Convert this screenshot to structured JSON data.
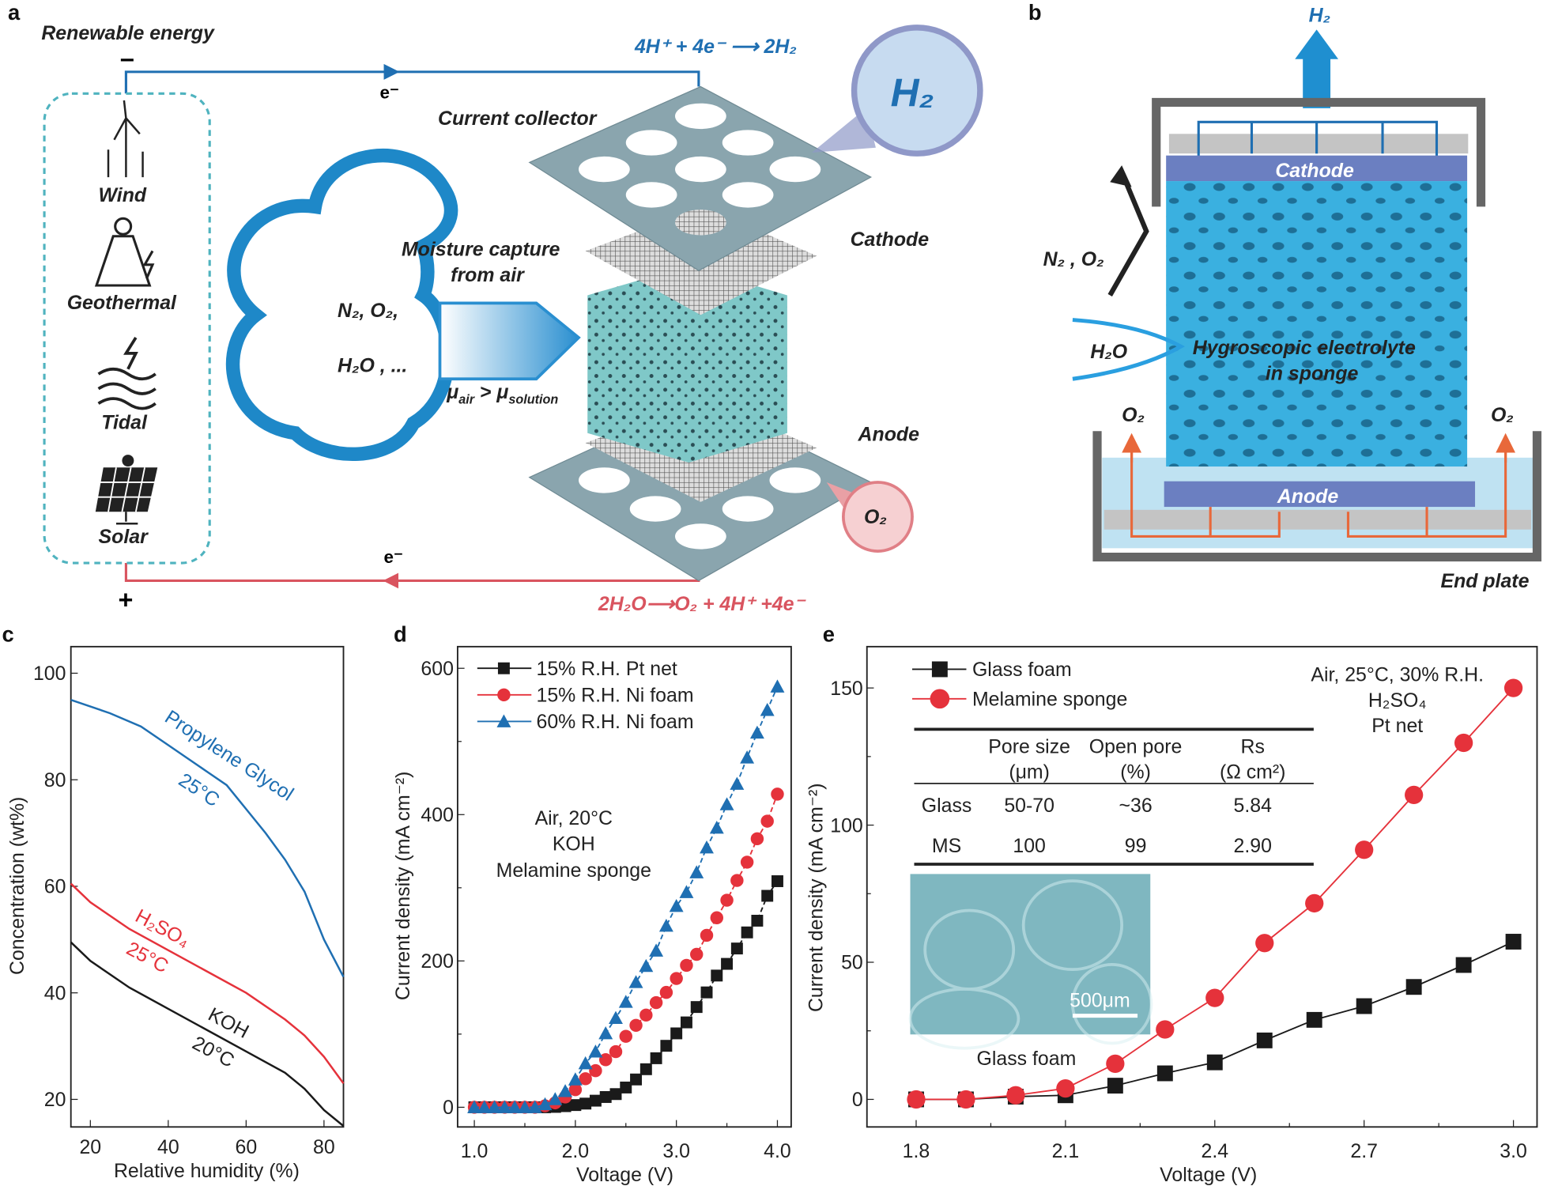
{
  "colors": {
    "blue": "#1f6fb2",
    "red": "#e5323b",
    "black": "#1a1a1a",
    "teal": "#4fb3bf",
    "plate": "#8aa5ae",
    "cathode": "#6b7fc1",
    "sponge": "#3ab0e0",
    "pinkred": "#d9545f"
  },
  "panel_a": {
    "label": "a",
    "renewable": "Renewable energy",
    "minus": "–",
    "plus": "+",
    "sources": [
      "Wind",
      "Geothermal",
      "Tidal",
      "Solar"
    ],
    "electron_top": "e⁻",
    "electron_bottom": "e⁻",
    "cathode_rxn": "4H⁺ + 4e⁻ ⟶ 2H₂",
    "anode_rxn": "2H₂O⟶O₂ + 4H⁺ +4e⁻",
    "cloud_line1": "N₂, O₂,",
    "cloud_line2": "H₂O , ...",
    "moisture_line1": "Moisture capture",
    "moisture_line2": "from air",
    "mu1": "μ",
    "mu_air": "air",
    "mu_gt": " > μ",
    "mu_solution": "solution",
    "current_collector": "Current collector",
    "cathode": "Cathode",
    "anode": "Anode",
    "h2_bubble": "H₂",
    "o2_bubble": "O₂"
  },
  "panel_b": {
    "label": "b",
    "h2": "H₂",
    "cathode": "Cathode",
    "n2o2": "N₂ , O₂",
    "h2o": "H₂O",
    "sponge_line1": "Hygroscopic electrolyte",
    "sponge_line2": "in sponge",
    "o2_left": "O₂",
    "o2_right": "O₂",
    "anode": "Anode",
    "end_plate": "End plate"
  },
  "chart_data": [
    {
      "id": "c",
      "label": "c",
      "type": "line",
      "xlabel": "Relative humidity (%)",
      "ylabel": "Concentration (wt%)",
      "xlim": [
        15,
        85
      ],
      "ylim": [
        15,
        105
      ],
      "xticks": [
        20,
        40,
        60,
        80
      ],
      "yticks": [
        20,
        40,
        60,
        80,
        100
      ],
      "series": [
        {
          "name": "Propylene Glycol",
          "annotation": "Propylene Glycol",
          "annotation2": "25°C",
          "color": "#1f6fb2",
          "x": [
            15,
            25,
            33,
            40,
            45,
            50,
            55,
            60,
            65,
            70,
            75,
            80,
            85
          ],
          "y": [
            95,
            92.5,
            90,
            86.5,
            84,
            81.5,
            79,
            74.5,
            70,
            65,
            59,
            50,
            43
          ]
        },
        {
          "name": "H2SO4",
          "annotation": "H₂SO₄",
          "annotation2": "25°C",
          "color": "#e5323b",
          "x": [
            15,
            20,
            30,
            40,
            50,
            60,
            70,
            75,
            80,
            85
          ],
          "y": [
            60.5,
            57,
            52,
            48,
            44,
            40,
            35,
            32,
            28,
            23
          ]
        },
        {
          "name": "KOH",
          "annotation": "KOH",
          "annotation2": "20°C",
          "color": "#1a1a1a",
          "x": [
            15,
            20,
            30,
            40,
            50,
            60,
            70,
            75,
            80,
            85
          ],
          "y": [
            49.5,
            46,
            41,
            37,
            33,
            29,
            25,
            22,
            18,
            15
          ]
        }
      ]
    },
    {
      "id": "d",
      "label": "d",
      "type": "scatter",
      "xlabel": "Voltage (V)",
      "ylabel": "Current density (mA cm⁻²)",
      "xlim": [
        0.9,
        4.15
      ],
      "ylim": [
        -30,
        630
      ],
      "xticks": [
        "1.0",
        "2.0",
        "3.0",
        "4.0"
      ],
      "yticks": [
        0,
        200,
        400,
        600
      ],
      "annotation": [
        "Air, 20°C",
        "KOH",
        "Melamine sponge"
      ],
      "x": [
        1.0,
        1.1,
        1.2,
        1.3,
        1.4,
        1.5,
        1.6,
        1.7,
        1.8,
        1.9,
        2.0,
        2.1,
        2.2,
        2.3,
        2.4,
        2.5,
        2.6,
        2.7,
        2.8,
        2.9,
        3.0,
        3.1,
        3.2,
        3.3,
        3.4,
        3.5,
        3.6,
        3.7,
        3.8,
        3.9,
        4.0
      ],
      "series": [
        {
          "name": "15% R.H. Pt net",
          "marker": "square",
          "color": "#1a1a1a",
          "values": [
            0,
            0,
            0,
            0,
            0,
            0,
            0,
            0,
            0.5,
            1.5,
            3,
            5,
            9,
            14,
            18,
            27,
            38,
            52,
            67,
            84,
            101,
            116,
            137,
            157,
            180,
            196,
            217,
            239,
            255,
            289,
            309
          ]
        },
        {
          "name": "15% R.H. Ni foam",
          "marker": "circle",
          "color": "#e5323b",
          "values": [
            0,
            0,
            0,
            0,
            0,
            0,
            0,
            2,
            6,
            14,
            24,
            39,
            50,
            65,
            76,
            97,
            112,
            126,
            143,
            157,
            176,
            194,
            209,
            235,
            259,
            283,
            310,
            335,
            367,
            391,
            428
          ]
        },
        {
          "name": "60% R.H. Ni foam",
          "marker": "triangle",
          "color": "#1f6fb2",
          "values": [
            0,
            0,
            0,
            0,
            0,
            0,
            0,
            4,
            11,
            22,
            38,
            60,
            76,
            101,
            122,
            144,
            171,
            193,
            214,
            248,
            275,
            294,
            321,
            355,
            382,
            414,
            442,
            478,
            512,
            543,
            575
          ]
        }
      ]
    },
    {
      "id": "e",
      "label": "e",
      "type": "line",
      "xlabel": "Voltage (V)",
      "ylabel": "Current density (mA cm⁻²)",
      "xlim": [
        1.74,
        3.06
      ],
      "ylim": [
        -10,
        165
      ],
      "xticks": [
        "1.8",
        "2.1",
        "2.4",
        "2.7",
        "3.0"
      ],
      "yticks": [
        0,
        50,
        100,
        150
      ],
      "annotation": [
        "Air, 25°C, 30% R.H.",
        "H₂SO₄",
        "Pt net"
      ],
      "x": [
        1.8,
        1.9,
        2.0,
        2.1,
        2.2,
        2.3,
        2.4,
        2.5,
        2.6,
        2.7,
        2.8,
        2.9,
        3.0
      ],
      "series": [
        {
          "name": "Glass foam",
          "marker": "square",
          "color": "#1a1a1a",
          "values": [
            0,
            0,
            1,
            1.5,
            5,
            9.5,
            13.5,
            21.5,
            29,
            34,
            41,
            49,
            57.5
          ]
        },
        {
          "name": "Melamine sponge",
          "marker": "circle",
          "color": "#e5323b",
          "values": [
            0,
            0,
            1.5,
            4,
            13,
            25.5,
            37,
            57,
            71.5,
            91,
            111,
            130,
            150
          ]
        }
      ],
      "table": {
        "headers": [
          [
            "",
            "Pore size",
            "Open pore",
            "Rs"
          ],
          [
            "",
            "(μm)",
            "(%)",
            "(Ω cm²)"
          ]
        ],
        "rows": [
          [
            "Glass",
            "50-70",
            "~36",
            "5.84"
          ],
          [
            "MS",
            "100",
            "99",
            "2.90"
          ]
        ]
      },
      "inset_scale": "500μm",
      "inset_caption": "Glass foam"
    }
  ]
}
